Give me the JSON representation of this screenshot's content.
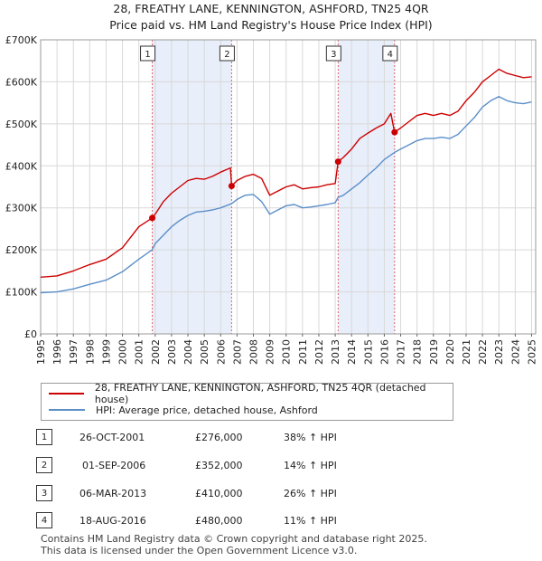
{
  "title_line1": "28, FREATHY LANE, KENNINGTON, ASHFORD, TN25 4QR",
  "title_line2": "Price paid vs. HM Land Registry's House Price Index (HPI)",
  "chart_data": {
    "type": "line",
    "ylim": [
      0,
      700000
    ],
    "xlim": [
      1995,
      2025.25
    ],
    "y_ticks": [
      0,
      100000,
      200000,
      300000,
      400000,
      500000,
      600000,
      700000
    ],
    "y_tick_labels": [
      "£0",
      "£100K",
      "£200K",
      "£300K",
      "£400K",
      "£500K",
      "£600K",
      "£700K"
    ],
    "x_ticks": [
      1995,
      1996,
      1997,
      1998,
      1999,
      2000,
      2001,
      2002,
      2003,
      2004,
      2005,
      2006,
      2007,
      2008,
      2009,
      2010,
      2011,
      2012,
      2013,
      2014,
      2015,
      2016,
      2017,
      2018,
      2019,
      2020,
      2021,
      2022,
      2023,
      2024,
      2025
    ],
    "shaded_ranges": [
      [
        2001.82,
        2006.67
      ],
      [
        2013.18,
        2016.63
      ]
    ],
    "series": [
      {
        "name": "28, FREATHY LANE, KENNINGTON, ASHFORD, TN25 4QR (detached house)",
        "color": "#cc0000",
        "points": [
          [
            1995,
            135000
          ],
          [
            1996,
            138000
          ],
          [
            1997,
            150000
          ],
          [
            1998,
            165000
          ],
          [
            1999,
            178000
          ],
          [
            2000,
            205000
          ],
          [
            2001,
            255000
          ],
          [
            2001.82,
            276000
          ],
          [
            2002,
            285000
          ],
          [
            2002.5,
            315000
          ],
          [
            2003,
            335000
          ],
          [
            2003.5,
            350000
          ],
          [
            2004,
            365000
          ],
          [
            2004.5,
            370000
          ],
          [
            2005,
            368000
          ],
          [
            2005.5,
            375000
          ],
          [
            2006,
            385000
          ],
          [
            2006.6,
            395000
          ],
          [
            2006.67,
            352000
          ],
          [
            2007,
            365000
          ],
          [
            2007.5,
            375000
          ],
          [
            2008,
            380000
          ],
          [
            2008.5,
            370000
          ],
          [
            2009,
            330000
          ],
          [
            2009.5,
            340000
          ],
          [
            2010,
            350000
          ],
          [
            2010.5,
            355000
          ],
          [
            2011,
            345000
          ],
          [
            2011.5,
            348000
          ],
          [
            2012,
            350000
          ],
          [
            2012.5,
            355000
          ],
          [
            2013,
            358000
          ],
          [
            2013.18,
            410000
          ],
          [
            2013.5,
            420000
          ],
          [
            2014,
            440000
          ],
          [
            2014.5,
            465000
          ],
          [
            2015,
            478000
          ],
          [
            2015.5,
            490000
          ],
          [
            2016,
            500000
          ],
          [
            2016.4,
            525000
          ],
          [
            2016.63,
            480000
          ],
          [
            2017,
            490000
          ],
          [
            2017.5,
            505000
          ],
          [
            2018,
            520000
          ],
          [
            2018.5,
            525000
          ],
          [
            2019,
            520000
          ],
          [
            2019.5,
            525000
          ],
          [
            2020,
            520000
          ],
          [
            2020.5,
            530000
          ],
          [
            2021,
            555000
          ],
          [
            2021.5,
            575000
          ],
          [
            2022,
            600000
          ],
          [
            2022.5,
            615000
          ],
          [
            2023,
            630000
          ],
          [
            2023.5,
            620000
          ],
          [
            2024,
            615000
          ],
          [
            2024.5,
            610000
          ],
          [
            2025,
            612000
          ]
        ]
      },
      {
        "name": "HPI: Average price, detached house, Ashford",
        "color": "#5b8fc9",
        "points": [
          [
            1995,
            98000
          ],
          [
            1996,
            100000
          ],
          [
            1997,
            107000
          ],
          [
            1998,
            118000
          ],
          [
            1999,
            128000
          ],
          [
            2000,
            148000
          ],
          [
            2001,
            178000
          ],
          [
            2001.82,
            200000
          ],
          [
            2002,
            215000
          ],
          [
            2002.5,
            235000
          ],
          [
            2003,
            255000
          ],
          [
            2003.5,
            270000
          ],
          [
            2004,
            282000
          ],
          [
            2004.5,
            290000
          ],
          [
            2005,
            292000
          ],
          [
            2005.5,
            295000
          ],
          [
            2006,
            300000
          ],
          [
            2006.67,
            310000
          ],
          [
            2007,
            320000
          ],
          [
            2007.5,
            330000
          ],
          [
            2008,
            332000
          ],
          [
            2008.5,
            315000
          ],
          [
            2009,
            285000
          ],
          [
            2009.5,
            295000
          ],
          [
            2010,
            305000
          ],
          [
            2010.5,
            308000
          ],
          [
            2011,
            300000
          ],
          [
            2011.5,
            302000
          ],
          [
            2012,
            305000
          ],
          [
            2012.5,
            308000
          ],
          [
            2013,
            312000
          ],
          [
            2013.18,
            325000
          ],
          [
            2013.5,
            330000
          ],
          [
            2014,
            345000
          ],
          [
            2014.5,
            360000
          ],
          [
            2015,
            378000
          ],
          [
            2015.5,
            395000
          ],
          [
            2016,
            415000
          ],
          [
            2016.63,
            432000
          ],
          [
            2017,
            440000
          ],
          [
            2017.5,
            450000
          ],
          [
            2018,
            460000
          ],
          [
            2018.5,
            465000
          ],
          [
            2019,
            465000
          ],
          [
            2019.5,
            468000
          ],
          [
            2020,
            465000
          ],
          [
            2020.5,
            475000
          ],
          [
            2021,
            495000
          ],
          [
            2021.5,
            515000
          ],
          [
            2022,
            540000
          ],
          [
            2022.5,
            555000
          ],
          [
            2023,
            565000
          ],
          [
            2023.5,
            555000
          ],
          [
            2024,
            550000
          ],
          [
            2024.5,
            548000
          ],
          [
            2025,
            552000
          ]
        ]
      }
    ],
    "sales": [
      {
        "label": "1",
        "date": "26-OCT-2001",
        "x": 2001.82,
        "price": 276000,
        "price_text": "£276,000",
        "hpi": "38% ↑ HPI"
      },
      {
        "label": "2",
        "date": "01-SEP-2006",
        "x": 2006.67,
        "price": 352000,
        "price_text": "£352,000",
        "hpi": "14% ↑ HPI"
      },
      {
        "label": "3",
        "date": "06-MAR-2013",
        "x": 2013.18,
        "price": 410000,
        "price_text": "£410,000",
        "hpi": "26% ↑ HPI"
      },
      {
        "label": "4",
        "date": "18-AUG-2016",
        "x": 2016.63,
        "price": 480000,
        "price_text": "£480,000",
        "hpi": "11% ↑ HPI"
      }
    ]
  },
  "legend": {
    "house": "28, FREATHY LANE, KENNINGTON, ASHFORD, TN25 4QR (detached house)",
    "hpi": "HPI: Average price, detached house, Ashford"
  },
  "footer": {
    "line1": "Contains HM Land Registry data © Crown copyright and database right 2025.",
    "line2": "This data is licensed under the Open Government Licence v3.0."
  }
}
